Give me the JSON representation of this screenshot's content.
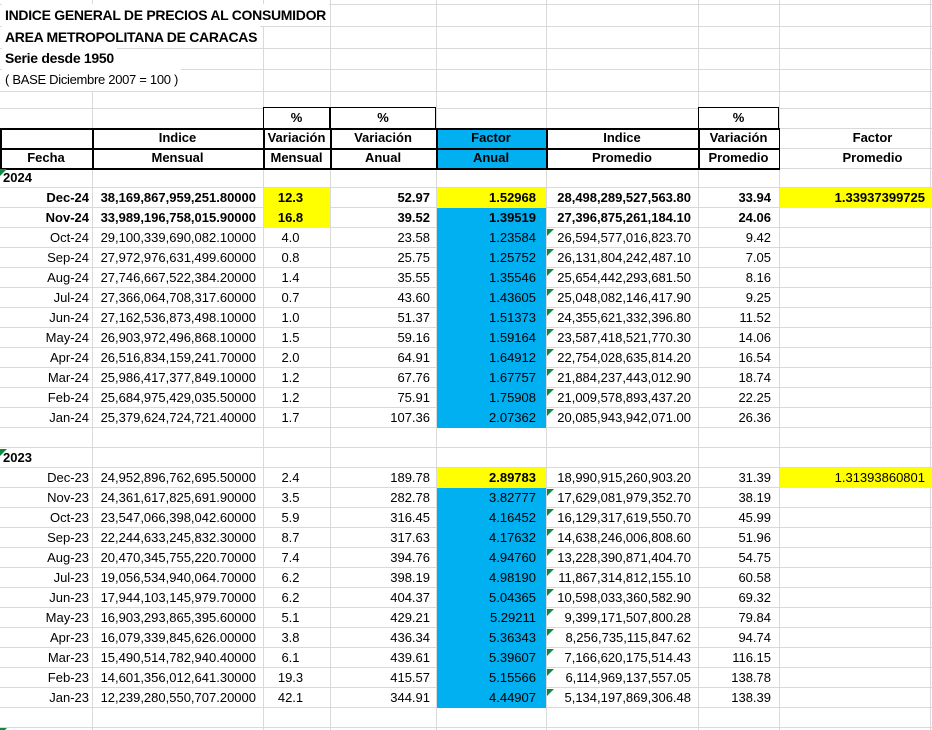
{
  "title": {
    "line1": "INDICE GENERAL DE PRECIOS AL CONSUMIDOR",
    "line2": "AREA METROPOLITANA DE CARACAS",
    "line3": "Serie desde 1950",
    "line4": "( BASE Diciembre 2007 = 100 )"
  },
  "header": {
    "percent": "%",
    "fecha": "Fecha",
    "indice": "Indice",
    "variacion": "Variación",
    "factor": "Factor",
    "mensual": "Mensual",
    "anual": "Anual",
    "promedio": "Promedio"
  },
  "colors": {
    "highlight_yellow": "#ffff00",
    "factor_blue": "#00b0f0",
    "error_indicator_green": "#0e8a3c",
    "gridline_gray": "#d9d9d9"
  },
  "sections": [
    {
      "year": "2024",
      "rows": [
        {
          "fecha": "Dec-24",
          "indice_mensual": "38,169,867,959,251.80000",
          "var_mensual": "12.3",
          "var_anual": "52.97",
          "factor_anual": "1.52968",
          "indice_promedio": "28,498,289,527,563.80",
          "var_promedio": "33.94",
          "factor_promedio": "1.33937399725",
          "bold": true,
          "factor_anual_bold": true,
          "triangle": false,
          "fills": {
            "var_mensual": "yellow",
            "factor_anual": "yellow",
            "factor_promedio": "yellow"
          }
        },
        {
          "fecha": "Nov-24",
          "indice_mensual": "33,989,196,758,015.90000",
          "var_mensual": "16.8",
          "var_anual": "39.52",
          "factor_anual": "1.39519",
          "indice_promedio": "27,396,875,261,184.10",
          "var_promedio": "24.06",
          "factor_promedio": "",
          "bold": true,
          "factor_anual_bold": true,
          "triangle": false,
          "fills": {
            "var_mensual": "yellow",
            "factor_anual": "blue"
          }
        },
        {
          "fecha": "Oct-24",
          "indice_mensual": "29,100,339,690,082.10000",
          "var_mensual": "4.0",
          "var_anual": "23.58",
          "factor_anual": "1.23584",
          "indice_promedio": "26,594,577,016,823.70",
          "var_promedio": "9.42",
          "factor_promedio": "",
          "bold": false,
          "factor_anual_bold": false,
          "triangle": true,
          "fills": {
            "factor_anual": "blue"
          }
        },
        {
          "fecha": "Sep-24",
          "indice_mensual": "27,972,976,631,499.60000",
          "var_mensual": "0.8",
          "var_anual": "25.75",
          "factor_anual": "1.25752",
          "indice_promedio": "26,131,804,242,487.10",
          "var_promedio": "7.05",
          "factor_promedio": "",
          "bold": false,
          "factor_anual_bold": false,
          "triangle": true,
          "fills": {
            "factor_anual": "blue"
          }
        },
        {
          "fecha": "Aug-24",
          "indice_mensual": "27,746,667,522,384.20000",
          "var_mensual": "1.4",
          "var_anual": "35.55",
          "factor_anual": "1.35546",
          "indice_promedio": "25,654,442,293,681.50",
          "var_promedio": "8.16",
          "factor_promedio": "",
          "bold": false,
          "factor_anual_bold": false,
          "triangle": true,
          "fills": {
            "factor_anual": "blue"
          }
        },
        {
          "fecha": "Jul-24",
          "indice_mensual": "27,366,064,708,317.60000",
          "var_mensual": "0.7",
          "var_anual": "43.60",
          "factor_anual": "1.43605",
          "indice_promedio": "25,048,082,146,417.90",
          "var_promedio": "9.25",
          "factor_promedio": "",
          "bold": false,
          "factor_anual_bold": false,
          "triangle": true,
          "fills": {
            "factor_anual": "blue"
          }
        },
        {
          "fecha": "Jun-24",
          "indice_mensual": "27,162,536,873,498.10000",
          "var_mensual": "1.0",
          "var_anual": "51.37",
          "factor_anual": "1.51373",
          "indice_promedio": "24,355,621,332,396.80",
          "var_promedio": "11.52",
          "factor_promedio": "",
          "bold": false,
          "factor_anual_bold": false,
          "triangle": true,
          "fills": {
            "factor_anual": "blue"
          }
        },
        {
          "fecha": "May-24",
          "indice_mensual": "26,903,972,496,868.10000",
          "var_mensual": "1.5",
          "var_anual": "59.16",
          "factor_anual": "1.59164",
          "indice_promedio": "23,587,418,521,770.30",
          "var_promedio": "14.06",
          "factor_promedio": "",
          "bold": false,
          "factor_anual_bold": false,
          "triangle": true,
          "fills": {
            "factor_anual": "blue"
          }
        },
        {
          "fecha": "Apr-24",
          "indice_mensual": "26,516,834,159,241.70000",
          "var_mensual": "2.0",
          "var_anual": "64.91",
          "factor_anual": "1.64912",
          "indice_promedio": "22,754,028,635,814.20",
          "var_promedio": "16.54",
          "factor_promedio": "",
          "bold": false,
          "factor_anual_bold": false,
          "triangle": true,
          "fills": {
            "factor_anual": "blue"
          }
        },
        {
          "fecha": "Mar-24",
          "indice_mensual": "25,986,417,377,849.10000",
          "var_mensual": "1.2",
          "var_anual": "67.76",
          "factor_anual": "1.67757",
          "indice_promedio": "21,884,237,443,012.90",
          "var_promedio": "18.74",
          "factor_promedio": "",
          "bold": false,
          "factor_anual_bold": false,
          "triangle": true,
          "fills": {
            "factor_anual": "blue"
          }
        },
        {
          "fecha": "Feb-24",
          "indice_mensual": "25,684,975,429,035.50000",
          "var_mensual": "1.2",
          "var_anual": "75.91",
          "factor_anual": "1.75908",
          "indice_promedio": "21,009,578,893,437.20",
          "var_promedio": "22.25",
          "factor_promedio": "",
          "bold": false,
          "factor_anual_bold": false,
          "triangle": true,
          "fills": {
            "factor_anual": "blue"
          }
        },
        {
          "fecha": "Jan-24",
          "indice_mensual": "25,379,624,724,721.40000",
          "var_mensual": "1.7",
          "var_anual": "107.36",
          "factor_anual": "2.07362",
          "indice_promedio": "20,085,943,942,071.00",
          "var_promedio": "26.36",
          "factor_promedio": "",
          "bold": false,
          "factor_anual_bold": false,
          "triangle": true,
          "fills": {
            "factor_anual": "blue"
          }
        }
      ]
    },
    {
      "year": "2023",
      "rows": [
        {
          "fecha": "Dec-23",
          "indice_mensual": "24,952,896,762,695.50000",
          "var_mensual": "2.4",
          "var_anual": "189.78",
          "factor_anual": "2.89783",
          "indice_promedio": "18,990,915,260,903.20",
          "var_promedio": "31.39",
          "factor_promedio": "1.31393860801",
          "bold": false,
          "factor_anual_bold": true,
          "triangle": false,
          "fills": {
            "factor_anual": "yellow",
            "factor_promedio": "yellow"
          }
        },
        {
          "fecha": "Nov-23",
          "indice_mensual": "24,361,617,825,691.90000",
          "var_mensual": "3.5",
          "var_anual": "282.78",
          "factor_anual": "3.82777",
          "indice_promedio": "17,629,081,979,352.70",
          "var_promedio": "38.19",
          "factor_promedio": "",
          "bold": false,
          "factor_anual_bold": false,
          "triangle": true,
          "fills": {
            "factor_anual": "blue"
          }
        },
        {
          "fecha": "Oct-23",
          "indice_mensual": "23,547,066,398,042.60000",
          "var_mensual": "5.9",
          "var_anual": "316.45",
          "factor_anual": "4.16452",
          "indice_promedio": "16,129,317,619,550.70",
          "var_promedio": "45.99",
          "factor_promedio": "",
          "bold": false,
          "factor_anual_bold": false,
          "triangle": true,
          "fills": {
            "factor_anual": "blue"
          }
        },
        {
          "fecha": "Sep-23",
          "indice_mensual": "22,244,633,245,832.30000",
          "var_mensual": "8.7",
          "var_anual": "317.63",
          "factor_anual": "4.17632",
          "indice_promedio": "14,638,246,006,808.60",
          "var_promedio": "51.96",
          "factor_promedio": "",
          "bold": false,
          "factor_anual_bold": false,
          "triangle": true,
          "fills": {
            "factor_anual": "blue"
          }
        },
        {
          "fecha": "Aug-23",
          "indice_mensual": "20,470,345,755,220.70000",
          "var_mensual": "7.4",
          "var_anual": "394.76",
          "factor_anual": "4.94760",
          "indice_promedio": "13,228,390,871,404.70",
          "var_promedio": "54.75",
          "factor_promedio": "",
          "bold": false,
          "factor_anual_bold": false,
          "triangle": true,
          "fills": {
            "factor_anual": "blue"
          }
        },
        {
          "fecha": "Jul-23",
          "indice_mensual": "19,056,534,940,064.70000",
          "var_mensual": "6.2",
          "var_anual": "398.19",
          "factor_anual": "4.98190",
          "indice_promedio": "11,867,314,812,155.10",
          "var_promedio": "60.58",
          "factor_promedio": "",
          "bold": false,
          "factor_anual_bold": false,
          "triangle": true,
          "fills": {
            "factor_anual": "blue"
          }
        },
        {
          "fecha": "Jun-23",
          "indice_mensual": "17,944,103,145,979.70000",
          "var_mensual": "6.2",
          "var_anual": "404.37",
          "factor_anual": "5.04365",
          "indice_promedio": "10,598,033,360,582.90",
          "var_promedio": "69.32",
          "factor_promedio": "",
          "bold": false,
          "factor_anual_bold": false,
          "triangle": true,
          "fills": {
            "factor_anual": "blue"
          }
        },
        {
          "fecha": "May-23",
          "indice_mensual": "16,903,293,865,395.60000",
          "var_mensual": "5.1",
          "var_anual": "429.21",
          "factor_anual": "5.29211",
          "indice_promedio": "9,399,171,507,800.28",
          "var_promedio": "79.84",
          "factor_promedio": "",
          "bold": false,
          "factor_anual_bold": false,
          "triangle": true,
          "fills": {
            "factor_anual": "blue"
          }
        },
        {
          "fecha": "Apr-23",
          "indice_mensual": "16,079,339,845,626.00000",
          "var_mensual": "3.8",
          "var_anual": "436.34",
          "factor_anual": "5.36343",
          "indice_promedio": "8,256,735,115,847.62",
          "var_promedio": "94.74",
          "factor_promedio": "",
          "bold": false,
          "factor_anual_bold": false,
          "triangle": true,
          "fills": {
            "factor_anual": "blue"
          }
        },
        {
          "fecha": "Mar-23",
          "indice_mensual": "15,490,514,782,940.40000",
          "var_mensual": "6.1",
          "var_anual": "439.61",
          "factor_anual": "5.39607",
          "indice_promedio": "7,166,620,175,514.43",
          "var_promedio": "116.15",
          "factor_promedio": "",
          "bold": false,
          "factor_anual_bold": false,
          "triangle": true,
          "fills": {
            "factor_anual": "blue"
          }
        },
        {
          "fecha": "Feb-23",
          "indice_mensual": "14,601,356,012,641.30000",
          "var_mensual": "19.3",
          "var_anual": "415.57",
          "factor_anual": "5.15566",
          "indice_promedio": "6,114,969,137,557.05",
          "var_promedio": "138.78",
          "factor_promedio": "",
          "bold": false,
          "factor_anual_bold": false,
          "triangle": true,
          "fills": {
            "factor_anual": "blue"
          }
        },
        {
          "fecha": "Jan-23",
          "indice_mensual": "12,239,280,550,707.20000",
          "var_mensual": "42.1",
          "var_anual": "344.91",
          "factor_anual": "4.44907",
          "indice_promedio": "5,134,197,869,306.48",
          "var_promedio": "138.39",
          "factor_promedio": "",
          "bold": false,
          "factor_anual_bold": false,
          "triangle": true,
          "fills": {
            "factor_anual": "blue"
          }
        }
      ]
    }
  ]
}
